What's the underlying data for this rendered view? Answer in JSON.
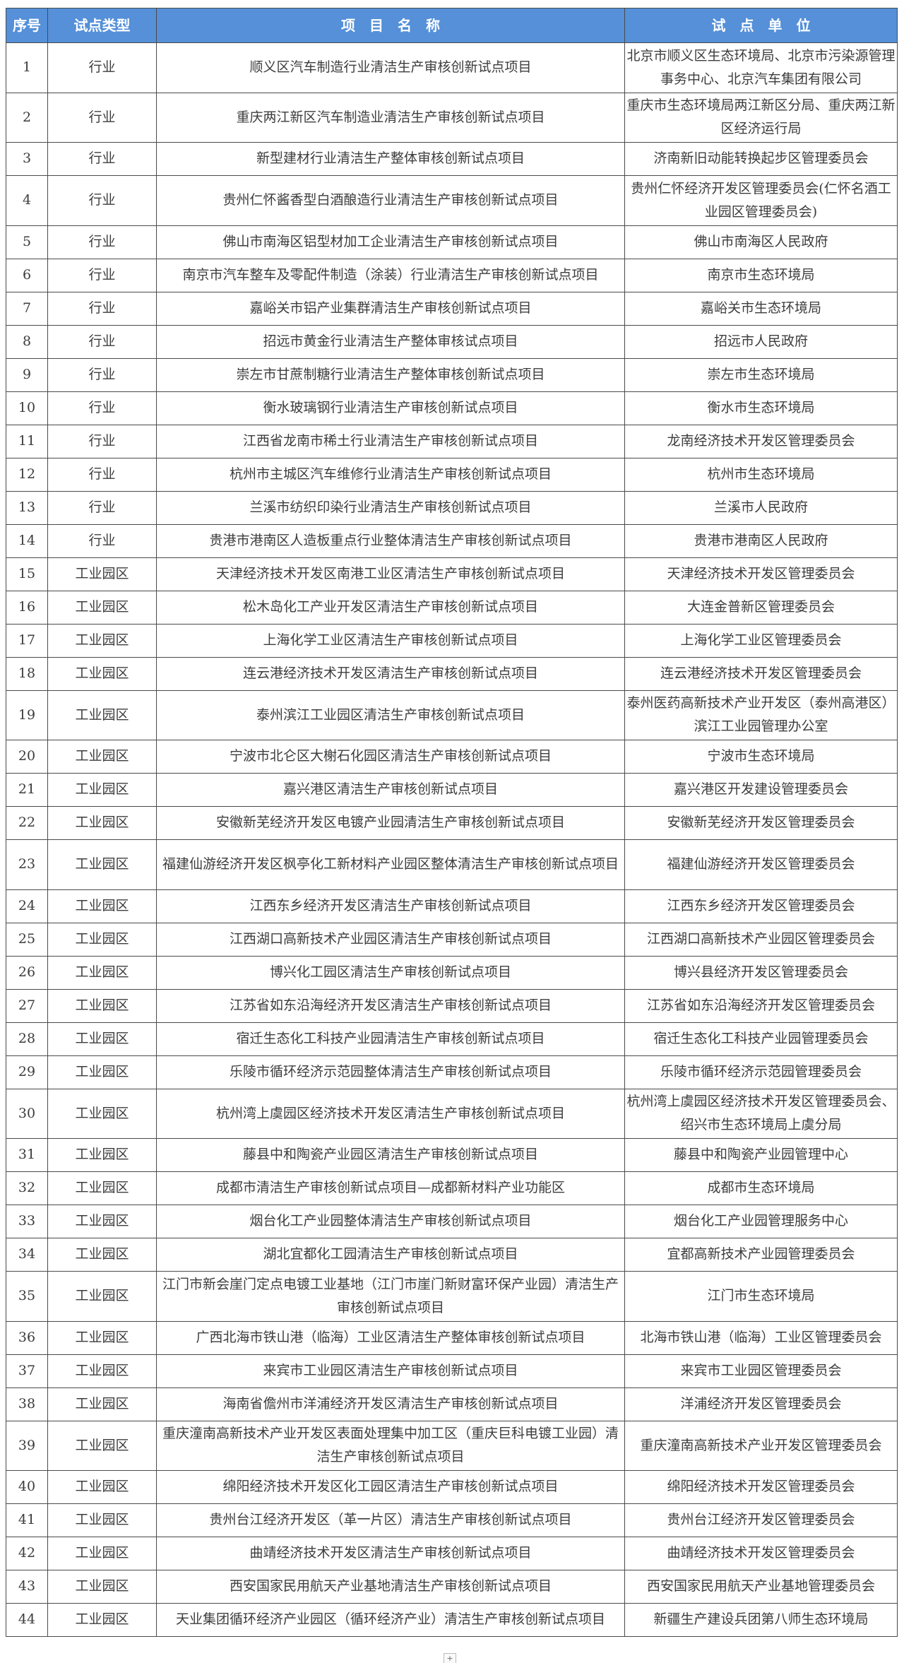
{
  "header": {
    "index": "序号",
    "type": "试点类型",
    "name": "项　目　名　称",
    "unit": "试　点　单　位"
  },
  "colors": {
    "header_bg": "#5590d8",
    "header_text": "#ffffff",
    "border": "#4a4a4a",
    "text": "#3c3c3c"
  },
  "rows": [
    {
      "no": "1",
      "type": "行业",
      "name": "顺义区汽车制造行业清洁生产审核创新试点项目",
      "unit": "北京市顺义区生态环境局、北京市污染源管理事务中心、北京汽车集团有限公司"
    },
    {
      "no": "2",
      "type": "行业",
      "name": "重庆两江新区汽车制造业清洁生产审核创新试点项目",
      "unit": "重庆市生态环境局两江新区分局、重庆两江新区经济运行局"
    },
    {
      "no": "3",
      "type": "行业",
      "name": "新型建材行业清洁生产整体审核创新试点项目",
      "unit": "济南新旧动能转换起步区管理委员会"
    },
    {
      "no": "4",
      "type": "行业",
      "name": "贵州仁怀酱香型白酒酿造行业清洁生产审核创新试点项目",
      "unit": "贵州仁怀经济开发区管理委员会(仁怀名酒工业园区管理委员会)"
    },
    {
      "no": "5",
      "type": "行业",
      "name": "佛山市南海区铝型材加工企业清洁生产审核创新试点项目",
      "unit": "佛山市南海区人民政府"
    },
    {
      "no": "6",
      "type": "行业",
      "name": "南京市汽车整车及零配件制造（涂装）行业清洁生产审核创新试点项目",
      "unit": "南京市生态环境局"
    },
    {
      "no": "7",
      "type": "行业",
      "name": "嘉峪关市铝产业集群清洁生产审核创新试点项目",
      "unit": "嘉峪关市生态环境局"
    },
    {
      "no": "8",
      "type": "行业",
      "name": "招远市黄金行业清洁生产整体审核试点项目",
      "unit": "招远市人民政府"
    },
    {
      "no": "9",
      "type": "行业",
      "name": "崇左市甘蔗制糖行业清洁生产整体审核创新试点项目",
      "unit": "崇左市生态环境局"
    },
    {
      "no": "10",
      "type": "行业",
      "name": "衡水玻璃钢行业清洁生产审核创新试点项目",
      "unit": "衡水市生态环境局"
    },
    {
      "no": "11",
      "type": "行业",
      "name": "江西省龙南市稀土行业清洁生产审核创新试点项目",
      "unit": "龙南经济技术开发区管理委员会"
    },
    {
      "no": "12",
      "type": "行业",
      "name": "杭州市主城区汽车维修行业清洁生产审核创新试点项目",
      "unit": "杭州市生态环境局"
    },
    {
      "no": "13",
      "type": "行业",
      "name": "兰溪市纺织印染行业清洁生产审核创新试点项目",
      "unit": "兰溪市人民政府"
    },
    {
      "no": "14",
      "type": "行业",
      "name": "贵港市港南区人造板重点行业整体清洁生产审核创新试点项目",
      "unit": "贵港市港南区人民政府"
    },
    {
      "no": "15",
      "type": "工业园区",
      "name": "天津经济技术开发区南港工业区清洁生产审核创新试点项目",
      "unit": "天津经济技术开发区管理委员会"
    },
    {
      "no": "16",
      "type": "工业园区",
      "name": "松木岛化工产业开发区清洁生产审核创新试点项目",
      "unit": "大连金普新区管理委员会"
    },
    {
      "no": "17",
      "type": "工业园区",
      "name": "上海化学工业区清洁生产审核创新试点项目",
      "unit": "上海化学工业区管理委员会"
    },
    {
      "no": "18",
      "type": "工业园区",
      "name": "连云港经济技术开发区清洁生产审核创新试点项目",
      "unit": "连云港经济技术开发区管理委员会"
    },
    {
      "no": "19",
      "type": "工业园区",
      "name": "泰州滨江工业园区清洁生产审核创新试点项目",
      "unit": "泰州医药高新技术产业开发区（泰州高港区）滨江工业园管理办公室"
    },
    {
      "no": "20",
      "type": "工业园区",
      "name": "宁波市北仑区大榭石化园区清洁生产审核创新试点项目",
      "unit": "宁波市生态环境局"
    },
    {
      "no": "21",
      "type": "工业园区",
      "name": "嘉兴港区清洁生产审核创新试点项目",
      "unit": "嘉兴港区开发建设管理委员会"
    },
    {
      "no": "22",
      "type": "工业园区",
      "name": "安徽新芜经济开发区电镀产业园清洁生产审核创新试点项目",
      "unit": "安徽新芜经济开发区管理委员会"
    },
    {
      "no": "23",
      "type": "工业园区",
      "name": "福建仙游经济开发区枫亭化工新材料产业园区整体清洁生产审核创新试点项目",
      "unit": "福建仙游经济开发区管理委员会"
    },
    {
      "no": "24",
      "type": "工业园区",
      "name": "江西东乡经济开发区清洁生产审核创新试点项目",
      "unit": "江西东乡经济开发区管理委员会"
    },
    {
      "no": "25",
      "type": "工业园区",
      "name": "江西湖口高新技术产业园区清洁生产审核创新试点项目",
      "unit": "江西湖口高新技术产业园区管理委员会"
    },
    {
      "no": "26",
      "type": "工业园区",
      "name": "博兴化工园区清洁生产审核创新试点项目",
      "unit": "博兴县经济开发区管理委员会"
    },
    {
      "no": "27",
      "type": "工业园区",
      "name": "江苏省如东沿海经济开发区清洁生产审核创新试点项目",
      "unit": "江苏省如东沿海经济开发区管理委员会"
    },
    {
      "no": "28",
      "type": "工业园区",
      "name": "宿迁生态化工科技产业园清洁生产审核创新试点项目",
      "unit": "宿迁生态化工科技产业园管理委员会"
    },
    {
      "no": "29",
      "type": "工业园区",
      "name": "乐陵市循环经济示范园整体清洁生产审核创新试点项目",
      "unit": "乐陵市循环经济示范园管理委员会"
    },
    {
      "no": "30",
      "type": "工业园区",
      "name": "杭州湾上虞园区经济技术开发区清洁生产审核创新试点项目",
      "unit": "杭州湾上虞园区经济技术开发区管理委员会、绍兴市生态环境局上虞分局"
    },
    {
      "no": "31",
      "type": "工业园区",
      "name": "藤县中和陶瓷产业园区清洁生产审核创新试点项目",
      "unit": "藤县中和陶瓷产业园管理中心"
    },
    {
      "no": "32",
      "type": "工业园区",
      "name": "成都市清洁生产审核创新试点项目—成都新材料产业功能区",
      "unit": "成都市生态环境局"
    },
    {
      "no": "33",
      "type": "工业园区",
      "name": "烟台化工产业园整体清洁生产审核创新试点项目",
      "unit": "烟台化工产业园管理服务中心"
    },
    {
      "no": "34",
      "type": "工业园区",
      "name": "湖北宜都化工园清洁生产审核创新试点项目",
      "unit": "宜都高新技术产业园管理委员会"
    },
    {
      "no": "35",
      "type": "工业园区",
      "name": "江门市新会崖门定点电镀工业基地（江门市崖门新财富环保产业园）清洁生产审核创新试点项目",
      "unit": "江门市生态环境局"
    },
    {
      "no": "36",
      "type": "工业园区",
      "name": "广西北海市铁山港（临海）工业区清洁生产整体审核创新试点项目",
      "unit": "北海市铁山港（临海）工业区管理委员会"
    },
    {
      "no": "37",
      "type": "工业园区",
      "name": "来宾市工业园区清洁生产审核创新试点项目",
      "unit": "来宾市工业园区管理委员会"
    },
    {
      "no": "38",
      "type": "工业园区",
      "name": "海南省儋州市洋浦经济开发区清洁生产审核创新试点项目",
      "unit": "洋浦经济开发区管理委员会"
    },
    {
      "no": "39",
      "type": "工业园区",
      "name": "重庆潼南高新技术产业开发区表面处理集中加工区（重庆巨科电镀工业园）清洁生产审核创新试点项目",
      "unit": "重庆潼南高新技术产业开发区管理委员会"
    },
    {
      "no": "40",
      "type": "工业园区",
      "name": "绵阳经济技术开发区化工园区清洁生产审核创新试点项目",
      "unit": "绵阳经济技术开发区管理委员会"
    },
    {
      "no": "41",
      "type": "工业园区",
      "name": "贵州台江经济开发区（革一片区）清洁生产审核创新试点项目",
      "unit": "贵州台江经济开发区管理委员会"
    },
    {
      "no": "42",
      "type": "工业园区",
      "name": "曲靖经济技术开发区清洁生产审核创新试点项目",
      "unit": "曲靖经济技术开发区管理委员会"
    },
    {
      "no": "43",
      "type": "工业园区",
      "name": "西安国家民用航天产业基地清洁生产审核创新试点项目",
      "unit": "西安国家民用航天产业基地管理委员会"
    },
    {
      "no": "44",
      "type": "工业园区",
      "name": "天业集团循环经济产业园区（循环经济产业）清洁生产审核创新试点项目",
      "unit": "新疆生产建设兵团第八师生态环境局"
    }
  ],
  "footer": {
    "add_sheet_label": "+"
  }
}
